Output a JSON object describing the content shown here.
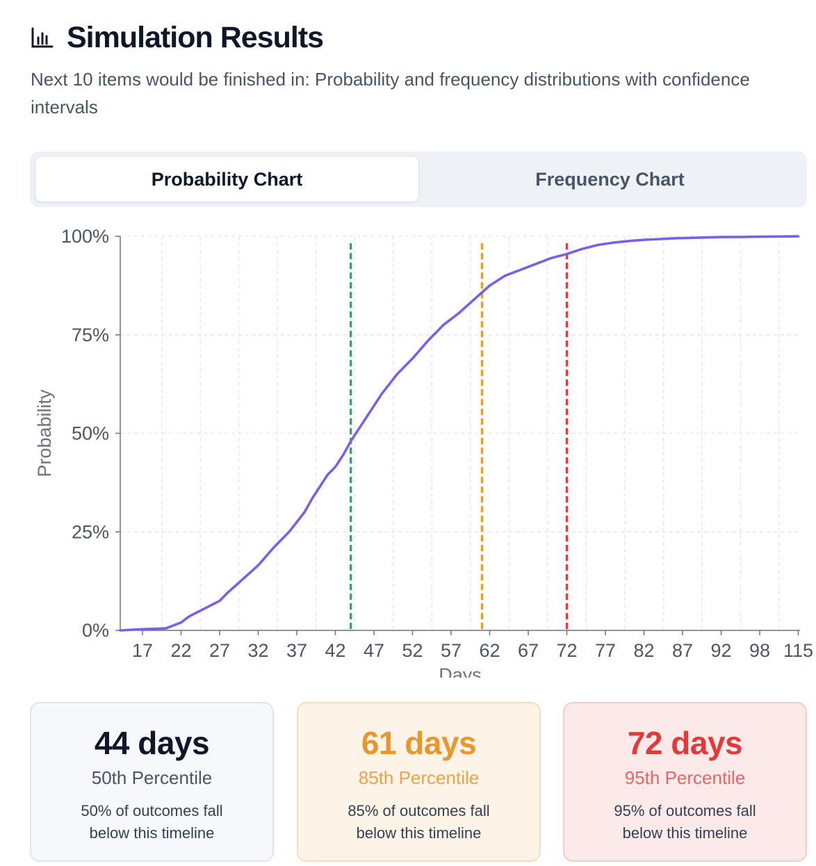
{
  "header": {
    "title": "Simulation Results",
    "title_icon": "bar-chart-icon",
    "subtitle": "Next 10 items would be finished in: Probability and frequency distributions with confidence intervals"
  },
  "tabs": [
    {
      "label": "Probability Chart",
      "active": true
    },
    {
      "label": "Frequency Chart",
      "active": false
    }
  ],
  "chart_data": {
    "type": "line",
    "xlabel": "Days",
    "ylabel": "Probability",
    "x_ticks": [
      17,
      22,
      27,
      32,
      37,
      42,
      47,
      52,
      57,
      62,
      67,
      72,
      77,
      82,
      87,
      92,
      98,
      115
    ],
    "y_ticks": [
      "0%",
      "25%",
      "50%",
      "75%",
      "100%"
    ],
    "ylim": [
      0,
      100
    ],
    "grid": true,
    "series": [
      {
        "color": "#7c5fe6",
        "points": [
          [
            14,
            0
          ],
          [
            17,
            0.3
          ],
          [
            20,
            0.5
          ],
          [
            22,
            2
          ],
          [
            23,
            3.5
          ],
          [
            24,
            4.5
          ],
          [
            25,
            5.5
          ],
          [
            26,
            6.5
          ],
          [
            27,
            7.5
          ],
          [
            28,
            9.5
          ],
          [
            30,
            13
          ],
          [
            32,
            16.5
          ],
          [
            34,
            21
          ],
          [
            36,
            25
          ],
          [
            37,
            27.5
          ],
          [
            38,
            30
          ],
          [
            39,
            33.5
          ],
          [
            40,
            36.5
          ],
          [
            41,
            39.5
          ],
          [
            42,
            41.5
          ],
          [
            43,
            44.5
          ],
          [
            44,
            48
          ],
          [
            45,
            51
          ],
          [
            46,
            54
          ],
          [
            47,
            57
          ],
          [
            48,
            60
          ],
          [
            50,
            65
          ],
          [
            52,
            69
          ],
          [
            54,
            73.5
          ],
          [
            56,
            77.5
          ],
          [
            58,
            80.5
          ],
          [
            60,
            84
          ],
          [
            62,
            87.5
          ],
          [
            64,
            90
          ],
          [
            66,
            91.5
          ],
          [
            68,
            93
          ],
          [
            70,
            94.5
          ],
          [
            72,
            95.5
          ],
          [
            74,
            96.8
          ],
          [
            76,
            97.8
          ],
          [
            78,
            98.4
          ],
          [
            80,
            98.8
          ],
          [
            82,
            99.1
          ],
          [
            84,
            99.3
          ],
          [
            86,
            99.5
          ],
          [
            88,
            99.6
          ],
          [
            90,
            99.7
          ],
          [
            92,
            99.8
          ],
          [
            95,
            99.85
          ],
          [
            98,
            99.9
          ],
          [
            105,
            99.95
          ],
          [
            115,
            100
          ]
        ]
      }
    ],
    "markers": [
      {
        "x": 44,
        "color": "#2f9e6b"
      },
      {
        "x": 61,
        "color": "#ef9a2b"
      },
      {
        "x": 72,
        "color": "#e23b3b"
      }
    ]
  },
  "percentiles": [
    {
      "value": "44 days",
      "label": "50th Percentile",
      "description": "50% of outcomes fall below this timeline"
    },
    {
      "value": "61 days",
      "label": "85th Percentile",
      "description": "85% of outcomes fall below this timeline"
    },
    {
      "value": "72 days",
      "label": "95th Percentile",
      "description": "95% of outcomes fall below this timeline"
    }
  ]
}
